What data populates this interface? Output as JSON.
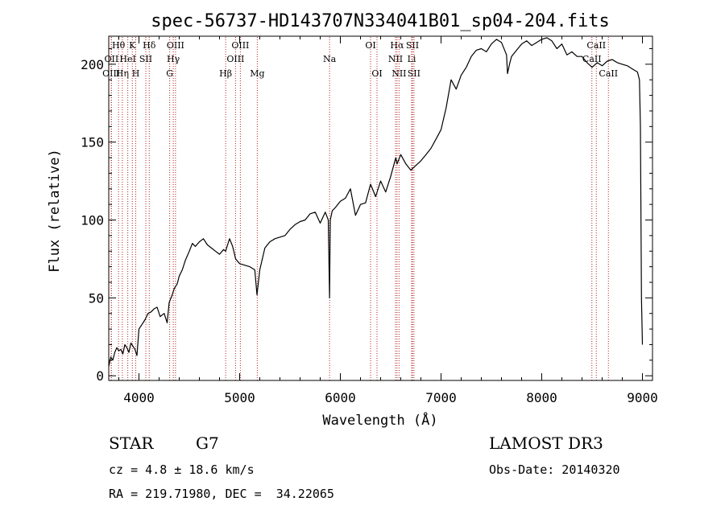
{
  "chart_data": {
    "type": "line",
    "title": "spec-56737-HD143707N334041B01_sp04-204.fits",
    "xlabel": "Wavelength (Å)",
    "ylabel": "Flux (relative)",
    "xlim": [
      3700,
      9100
    ],
    "ylim": [
      -3,
      218
    ],
    "x_ticks": [
      4000,
      5000,
      6000,
      7000,
      8000,
      9000
    ],
    "y_ticks": [
      0,
      50,
      100,
      150,
      200
    ],
    "series": [
      {
        "name": "spectrum",
        "x": [
          3700,
          3720,
          3740,
          3760,
          3780,
          3800,
          3820,
          3840,
          3860,
          3880,
          3900,
          3920,
          3940,
          3960,
          3980,
          4000,
          4030,
          4060,
          4090,
          4120,
          4150,
          4180,
          4210,
          4250,
          4280,
          4300,
          4330,
          4350,
          4380,
          4400,
          4430,
          4460,
          4500,
          4530,
          4560,
          4600,
          4640,
          4680,
          4720,
          4760,
          4800,
          4840,
          4861,
          4880,
          4900,
          4930,
          4960,
          5000,
          5050,
          5100,
          5150,
          5172,
          5200,
          5250,
          5300,
          5350,
          5400,
          5450,
          5500,
          5550,
          5600,
          5650,
          5700,
          5750,
          5800,
          5850,
          5880,
          5893,
          5900,
          5920,
          5950,
          6000,
          6050,
          6100,
          6150,
          6200,
          6250,
          6300,
          6350,
          6400,
          6450,
          6500,
          6550,
          6563,
          6600,
          6650,
          6700,
          6750,
          6800,
          6850,
          6900,
          6950,
          7000,
          7050,
          7100,
          7150,
          7200,
          7250,
          7300,
          7350,
          7400,
          7450,
          7500,
          7550,
          7600,
          7650,
          7660,
          7680,
          7700,
          7750,
          7800,
          7850,
          7900,
          7950,
          8000,
          8050,
          8100,
          8150,
          8200,
          8250,
          8300,
          8350,
          8400,
          8450,
          8500,
          8550,
          8600,
          8650,
          8700,
          8750,
          8800,
          8850,
          8900,
          8950,
          8970,
          8980,
          8990,
          9000
        ],
        "y": [
          6,
          12,
          10,
          15,
          18,
          16,
          17,
          14,
          20,
          18,
          15,
          21,
          19,
          17,
          13,
          30,
          33,
          36,
          40,
          41,
          43,
          44,
          38,
          40,
          34,
          47,
          52,
          56,
          59,
          64,
          68,
          74,
          80,
          85,
          83,
          86,
          88,
          84,
          82,
          80,
          78,
          81,
          80,
          84,
          88,
          83,
          75,
          72,
          71,
          70,
          68,
          52,
          68,
          82,
          86,
          88,
          89,
          90,
          94,
          97,
          99,
          100,
          104,
          105,
          98,
          105,
          100,
          50,
          100,
          106,
          108,
          112,
          114,
          120,
          103,
          110,
          111,
          123,
          115,
          125,
          118,
          128,
          140,
          136,
          142,
          136,
          132,
          135,
          138,
          142,
          146,
          152,
          158,
          172,
          190,
          184,
          193,
          198,
          205,
          209,
          210,
          208,
          213,
          216,
          214,
          206,
          194,
          200,
          205,
          209,
          213,
          215,
          212,
          214,
          216,
          217,
          215,
          210,
          213,
          206,
          208,
          205,
          205,
          201,
          198,
          201,
          199,
          202,
          203,
          201,
          200,
          199,
          197,
          195,
          190,
          160,
          50,
          20
        ]
      }
    ],
    "lines": [
      {
        "label": "Hθ",
        "wl": 3797,
        "row": 0
      },
      {
        "label": "OII",
        "wl": 3727,
        "row": 1
      },
      {
        "label": "OIII",
        "wl": 3725,
        "row": 2
      },
      {
        "label": "Hη",
        "wl": 3835,
        "row": 2
      },
      {
        "label": "HeI",
        "wl": 3889,
        "row": 1
      },
      {
        "label": "K",
        "wl": 3934,
        "row": 0
      },
      {
        "label": "H",
        "wl": 3968,
        "row": 2
      },
      {
        "label": "SII",
        "wl": 4068,
        "row": 1
      },
      {
        "label": "Hδ",
        "wl": 4102,
        "row": 0
      },
      {
        "label": "OIII",
        "wl": 4363,
        "row": 0
      },
      {
        "label": "Hγ",
        "wl": 4341,
        "row": 1
      },
      {
        "label": "G",
        "wl": 4305,
        "row": 2
      },
      {
        "label": "Hβ",
        "wl": 4861,
        "row": 2
      },
      {
        "label": "OIII",
        "wl": 5007,
        "row": 0
      },
      {
        "label": "OIII",
        "wl": 4959,
        "row": 1
      },
      {
        "label": "Mg",
        "wl": 5175,
        "row": 2
      },
      {
        "label": "Na",
        "wl": 5893,
        "row": 1
      },
      {
        "label": "OI",
        "wl": 6300,
        "row": 0
      },
      {
        "label": "OI",
        "wl": 6364,
        "row": 2
      },
      {
        "label": "Hα",
        "wl": 6563,
        "row": 0
      },
      {
        "label": "NII",
        "wl": 6548,
        "row": 1
      },
      {
        "label": "NII",
        "wl": 6583,
        "row": 2
      },
      {
        "label": "SII",
        "wl": 6716,
        "row": 0
      },
      {
        "label": "Li",
        "wl": 6708,
        "row": 1
      },
      {
        "label": "SII",
        "wl": 6731,
        "row": 2
      },
      {
        "label": "CaII",
        "wl": 8542,
        "row": 0
      },
      {
        "label": "CaII",
        "wl": 8498,
        "row": 1
      },
      {
        "label": "CaII",
        "wl": 8662,
        "row": 2
      }
    ]
  },
  "info": {
    "object_class": "STAR",
    "subclass": "G7",
    "survey": "LAMOST DR3",
    "redshift": "cz = 4.8 ± 18.6 km/s",
    "obs_date": "Obs-Date: 20140320",
    "coords": "RA = 219.71980, DEC =  34.22065"
  },
  "colors": {
    "spectrum": "#000000",
    "line_marker": "#b22222",
    "axis": "#000000"
  }
}
